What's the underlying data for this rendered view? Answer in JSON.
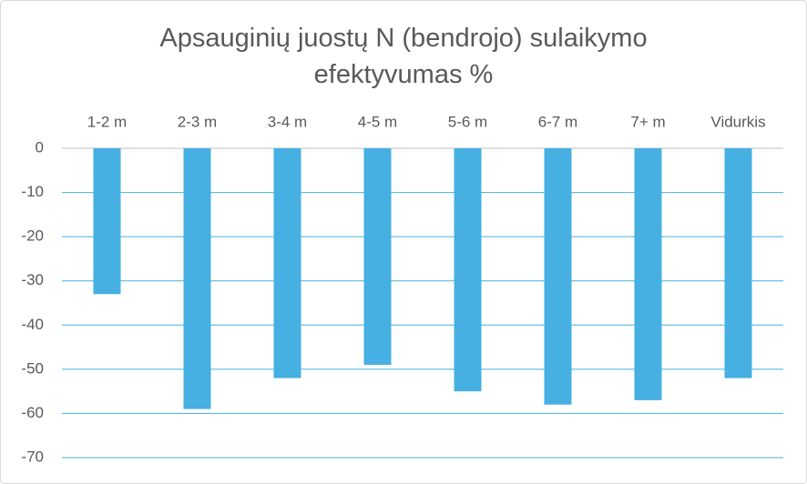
{
  "chart_data": {
    "type": "bar",
    "title": "Apsauginių juostų N (bendrojo) sulaikymo efektyvumas %",
    "categories": [
      "1-2 m",
      "2-3 m",
      "3-4 m",
      "4-5 m",
      "5-6 m",
      "6-7 m",
      "7+ m",
      "Vidurkis"
    ],
    "values": [
      -33,
      -59,
      -52,
      -49,
      -55,
      -58,
      -57,
      -52
    ],
    "color": "#45b0e1",
    "ylim": [
      -70,
      0
    ],
    "yticks": [
      0,
      -10,
      -20,
      -30,
      -40,
      -50,
      -60,
      -70
    ],
    "grid": true
  }
}
